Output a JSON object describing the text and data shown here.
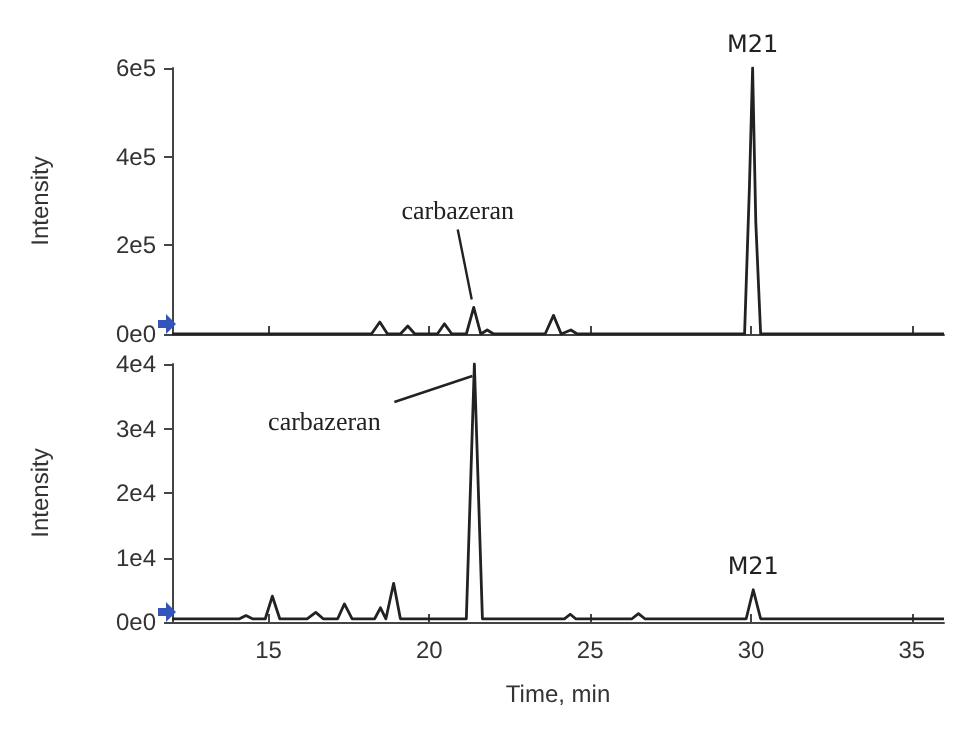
{
  "chart_data": [
    {
      "type": "line",
      "ylabel": "Intensity",
      "xlim": [
        12,
        36
      ],
      "xticks": [
        {
          "value": 15,
          "label": null
        },
        {
          "value": 20,
          "label": null
        },
        {
          "value": 25,
          "label": null
        },
        {
          "value": 30,
          "label": null
        },
        {
          "value": 35,
          "label": null
        }
      ],
      "ylim": [
        0,
        600000
      ],
      "yticks": [
        {
          "value": 0,
          "label": "0e0"
        },
        {
          "value": 200000,
          "label": "2e5"
        },
        {
          "value": 400000,
          "label": "4e5"
        },
        {
          "value": 600000,
          "label": "6e5"
        }
      ],
      "tick_labels": "y",
      "grid": false,
      "marker": "none",
      "line_style": "solid",
      "series": [
        {
          "color": "#222222",
          "x": [
            12,
            18.2,
            18.46,
            18.7,
            19.1,
            19.33,
            19.55,
            20.25,
            20.47,
            20.7,
            21.15,
            21.38,
            21.6,
            21.8,
            22.0,
            23.6,
            23.86,
            24.1,
            24.4,
            24.6,
            29.8,
            29.95,
            30.05,
            30.15,
            30.3,
            36
          ],
          "values": [
            0,
            0,
            27000,
            0,
            0,
            18000,
            0,
            0,
            23000,
            0,
            0,
            60000,
            0,
            9000,
            0,
            0,
            42000,
            0,
            9000,
            0,
            0,
            330000,
            600000,
            250000,
            0,
            0
          ]
        }
      ],
      "annotations": [
        {
          "text": "carbazeran",
          "x": 21.38,
          "y": 60000
        },
        {
          "text": "M21",
          "x": 30.05,
          "y": 600000
        }
      ]
    },
    {
      "type": "line",
      "xlabel": "Time, min",
      "ylabel": "Intensity",
      "xlim": [
        12,
        36
      ],
      "xticks": [
        15,
        20,
        25,
        30,
        35
      ],
      "ylim": [
        0,
        40000
      ],
      "yticks": [
        {
          "value": 0,
          "label": "0e0"
        },
        {
          "value": 10000,
          "label": "1e4"
        },
        {
          "value": 20000,
          "label": "2e4"
        },
        {
          "value": 30000,
          "label": "3e4"
        },
        {
          "value": 40000,
          "label": "4e4"
        }
      ],
      "grid": false,
      "marker": "none",
      "line_style": "solid",
      "series": [
        {
          "color": "#222222",
          "x": [
            12,
            14.1,
            14.3,
            14.5,
            14.9,
            15.12,
            15.35,
            16.2,
            16.47,
            16.7,
            17.15,
            17.36,
            17.6,
            18.3,
            18.48,
            18.65,
            18.89,
            19.1,
            21.15,
            21.4,
            21.65,
            24.2,
            24.38,
            24.55,
            26.3,
            26.5,
            26.7,
            29.85,
            30.07,
            30.3,
            36
          ],
          "values": [
            500,
            500,
            1000,
            500,
            500,
            4000,
            500,
            500,
            1500,
            500,
            500,
            2800,
            500,
            500,
            2200,
            500,
            6000,
            500,
            500,
            40000,
            500,
            500,
            1200,
            500,
            500,
            1300,
            500,
            500,
            5000,
            500,
            500
          ]
        }
      ],
      "annotations": [
        {
          "text": "carbazeran",
          "x": 21.4,
          "y": 40000
        },
        {
          "text": "M21",
          "x": 30.07,
          "y": 5000
        }
      ]
    }
  ]
}
